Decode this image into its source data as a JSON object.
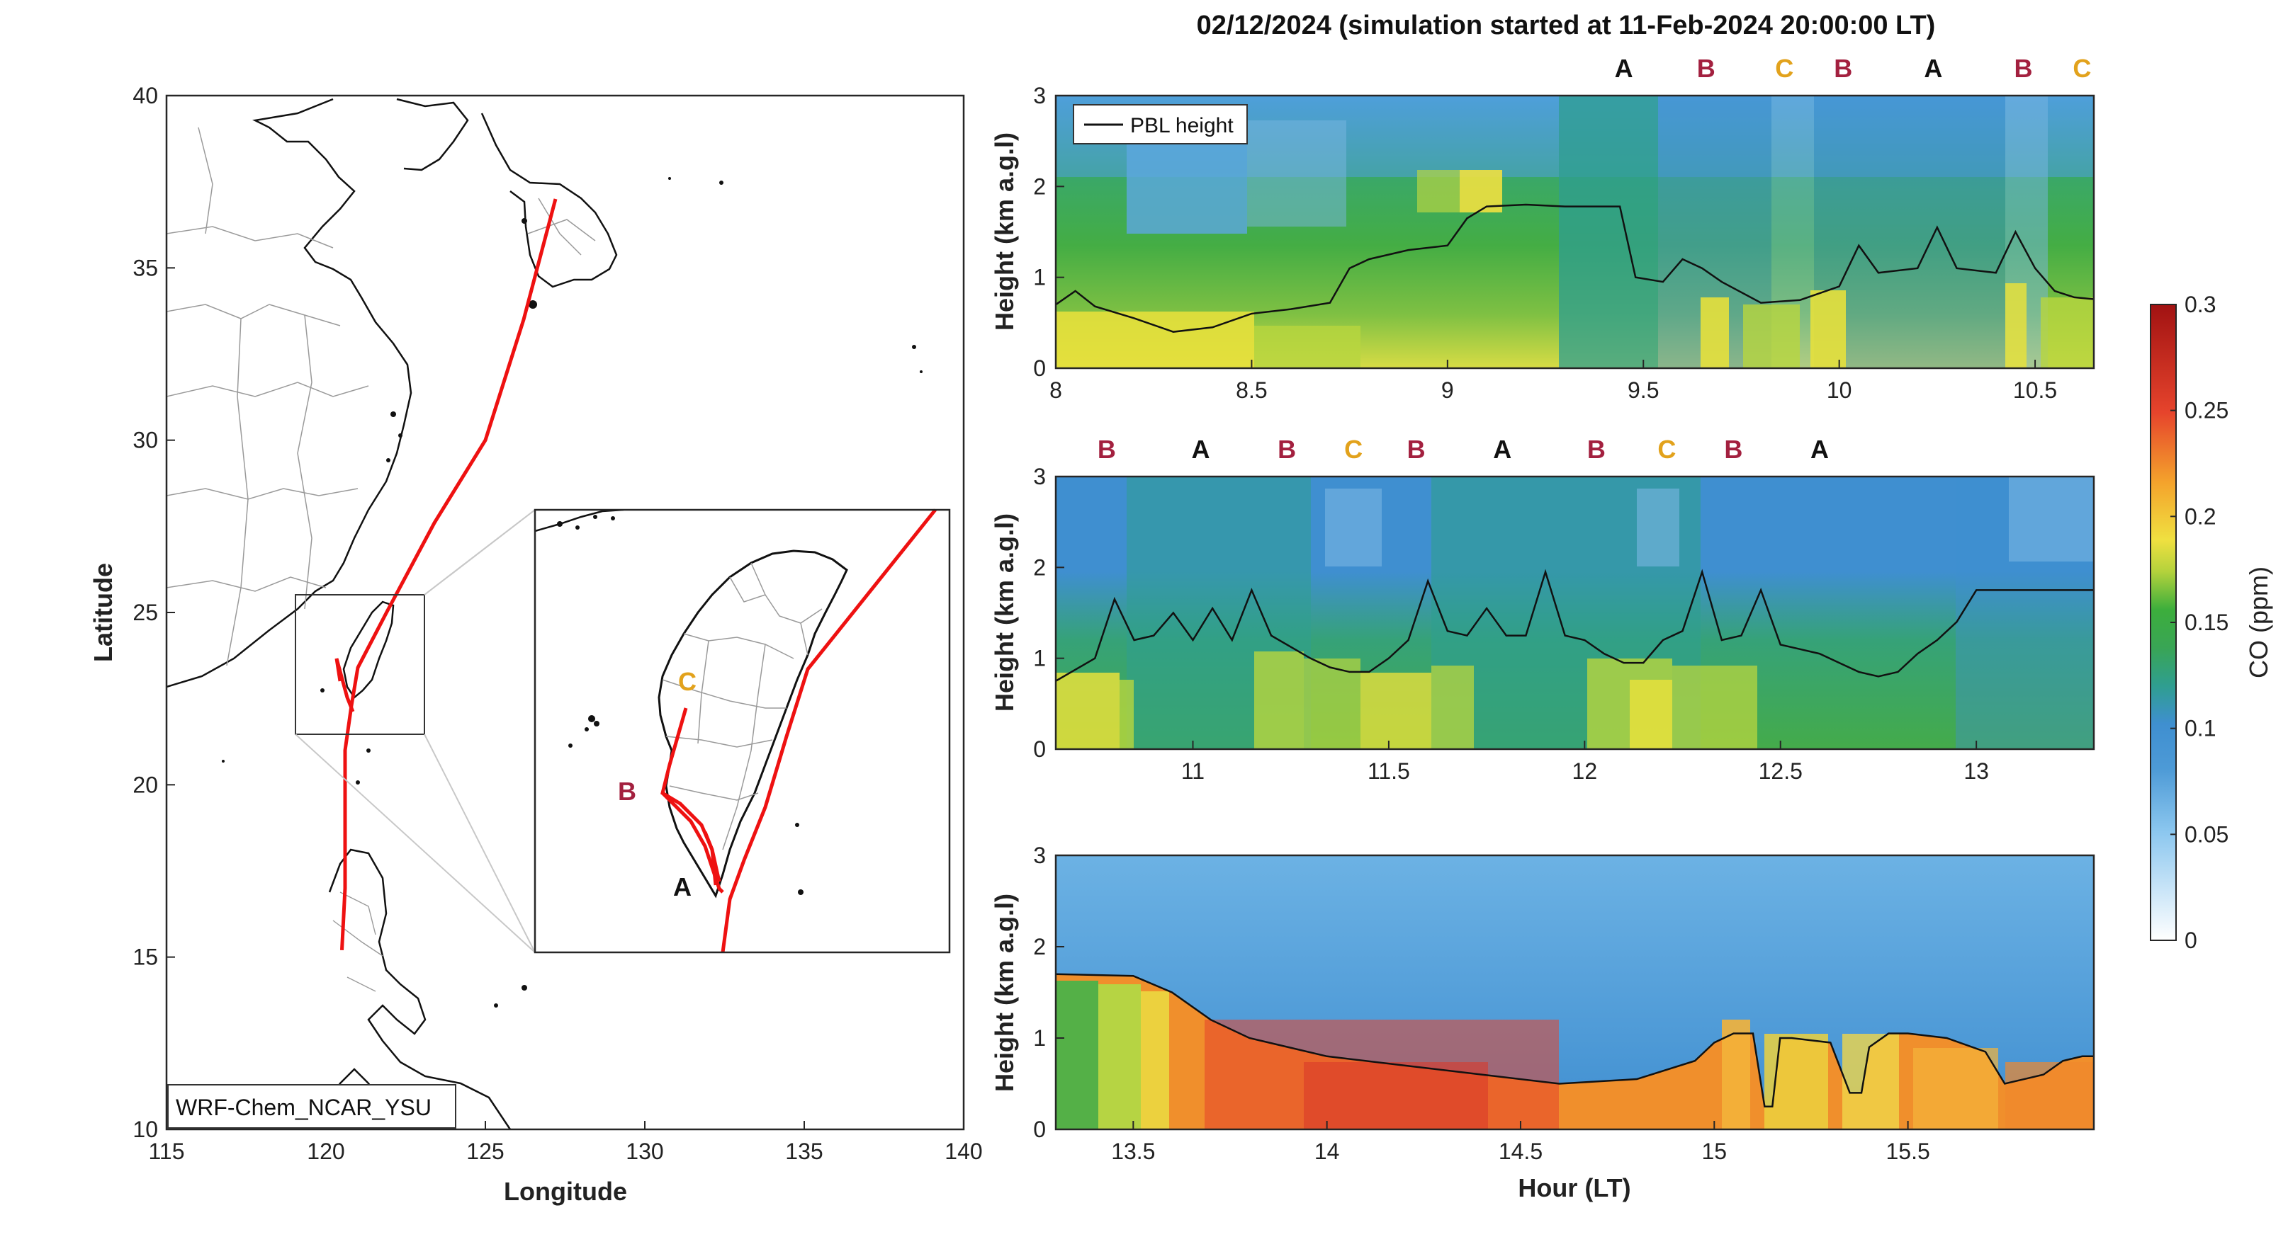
{
  "colors": {
    "track": "#ee1111",
    "mark_A": "#111111",
    "mark_B": "#a3203f",
    "mark_C": "#e2a21c",
    "land_border": "#9a9a9a",
    "coast": "#111111",
    "colormap": [
      "#ffffff",
      "#8cc7ef",
      "#3f8fd0",
      "#2f9e90",
      "#3cae3c",
      "#e6e03c",
      "#f4a32c",
      "#e6442c",
      "#a11212"
    ]
  },
  "chart_data": [
    {
      "type": "map",
      "xlabel": "Longitude",
      "ylabel": "Latitude",
      "xlim": [
        115,
        140
      ],
      "ylim": [
        10,
        40
      ],
      "xticks": [
        "115",
        "120",
        "125",
        "130",
        "135",
        "140"
      ],
      "yticks": [
        "10",
        "15",
        "20",
        "25",
        "30",
        "35",
        "40"
      ],
      "model_label": "WRF-Chem_NCAR_YSU",
      "track": {
        "lon": [
          127.2,
          126.2,
          125.0,
          123.4,
          121.9,
          121.0,
          120.8,
          120.6,
          120.6,
          120.6,
          120.5
        ],
        "lat": [
          37.0,
          33.5,
          30.0,
          27.6,
          25.0,
          23.4,
          22.3,
          21.0,
          19.0,
          17.0,
          15.2
        ]
      },
      "inset_view": {
        "lon": [
          119.2,
          122.9
        ],
        "lat": [
          21.5,
          25.5
        ]
      },
      "inset_marks": [
        {
          "label": "A",
          "color": "mark_A"
        },
        {
          "label": "B",
          "color": "mark_B"
        },
        {
          "label": "C",
          "color": "mark_C"
        }
      ]
    },
    {
      "type": "heatmap",
      "title": "02/12/2024 (simulation started at 11-Feb-2024 20:00:00 LT)",
      "ylabel": "Height (km a.g.l)",
      "xlim": [
        8.0,
        10.65
      ],
      "ylim": [
        0,
        3
      ],
      "xticks": [
        "8",
        "8.5",
        "9",
        "9.5",
        "10",
        "10.5"
      ],
      "yticks": [
        "0",
        "1",
        "2",
        "3"
      ],
      "legend": "PBL height",
      "site_marks": [
        {
          "label": "A",
          "x": 9.45,
          "color": "mark_A"
        },
        {
          "label": "B",
          "x": 9.66,
          "color": "mark_B"
        },
        {
          "label": "C",
          "x": 9.86,
          "color": "mark_C"
        },
        {
          "label": "B",
          "x": 10.01,
          "color": "mark_B"
        },
        {
          "label": "A",
          "x": 10.24,
          "color": "mark_A"
        },
        {
          "label": "B",
          "x": 10.47,
          "color": "mark_B"
        },
        {
          "label": "C",
          "x": 10.62,
          "color": "mark_C"
        }
      ],
      "pbl_height": {
        "x": [
          8.0,
          8.05,
          8.1,
          8.2,
          8.3,
          8.4,
          8.5,
          8.6,
          8.7,
          8.75,
          8.8,
          8.9,
          9.0,
          9.05,
          9.1,
          9.2,
          9.3,
          9.4,
          9.44,
          9.48,
          9.55,
          9.6,
          9.65,
          9.7,
          9.8,
          9.9,
          10.0,
          10.05,
          10.1,
          10.2,
          10.25,
          10.3,
          10.4,
          10.45,
          10.5,
          10.55,
          10.6,
          10.65
        ],
        "y": [
          0.7,
          0.85,
          0.68,
          0.55,
          0.4,
          0.45,
          0.6,
          0.65,
          0.72,
          1.1,
          1.2,
          1.3,
          1.35,
          1.65,
          1.78,
          1.8,
          1.78,
          1.78,
          1.78,
          1.0,
          0.95,
          1.2,
          1.1,
          0.95,
          0.72,
          0.75,
          0.9,
          1.35,
          1.05,
          1.1,
          1.55,
          1.1,
          1.05,
          1.5,
          1.1,
          0.85,
          0.78,
          0.76
        ]
      }
    },
    {
      "type": "heatmap",
      "ylabel": "Height (km a.g.l)",
      "xlim": [
        10.65,
        13.3
      ],
      "ylim": [
        0,
        3
      ],
      "xticks": [
        "11",
        "11.5",
        "12",
        "12.5",
        "13"
      ],
      "yticks": [
        "0",
        "1",
        "2",
        "3"
      ],
      "site_marks": [
        {
          "label": "B",
          "x": 10.78,
          "color": "mark_B"
        },
        {
          "label": "A",
          "x": 11.02,
          "color": "mark_A"
        },
        {
          "label": "B",
          "x": 11.24,
          "color": "mark_B"
        },
        {
          "label": "C",
          "x": 11.41,
          "color": "mark_C"
        },
        {
          "label": "B",
          "x": 11.57,
          "color": "mark_B"
        },
        {
          "label": "A",
          "x": 11.79,
          "color": "mark_A"
        },
        {
          "label": "B",
          "x": 12.03,
          "color": "mark_B"
        },
        {
          "label": "C",
          "x": 12.21,
          "color": "mark_C"
        },
        {
          "label": "B",
          "x": 12.38,
          "color": "mark_B"
        },
        {
          "label": "A",
          "x": 12.6,
          "color": "mark_A"
        }
      ],
      "pbl_height": {
        "x": [
          10.65,
          10.75,
          10.8,
          10.85,
          10.9,
          10.95,
          11.0,
          11.05,
          11.1,
          11.15,
          11.2,
          11.3,
          11.35,
          11.4,
          11.45,
          11.5,
          11.55,
          11.6,
          11.65,
          11.7,
          11.75,
          11.8,
          11.85,
          11.9,
          11.95,
          12.0,
          12.05,
          12.1,
          12.15,
          12.2,
          12.25,
          12.3,
          12.35,
          12.4,
          12.45,
          12.5,
          12.55,
          12.6,
          12.65,
          12.7,
          12.75,
          12.8,
          12.85,
          12.9,
          12.95,
          13.0,
          13.05,
          13.1,
          13.15,
          13.2,
          13.25,
          13.3
        ],
        "y": [
          0.75,
          1.0,
          1.65,
          1.2,
          1.25,
          1.5,
          1.2,
          1.55,
          1.2,
          1.75,
          1.25,
          1.0,
          0.9,
          0.85,
          0.85,
          1.0,
          1.2,
          1.85,
          1.3,
          1.25,
          1.55,
          1.25,
          1.25,
          1.95,
          1.25,
          1.2,
          1.05,
          0.95,
          0.95,
          1.2,
          1.3,
          1.95,
          1.2,
          1.25,
          1.75,
          1.15,
          1.1,
          1.05,
          0.95,
          0.85,
          0.8,
          0.85,
          1.05,
          1.2,
          1.4,
          1.75,
          1.75,
          1.75,
          1.75,
          1.75,
          1.75,
          1.75
        ]
      }
    },
    {
      "type": "heatmap",
      "xlabel": "Hour (LT)",
      "ylabel": "Height (km a.g.l)",
      "xlim": [
        13.3,
        15.98
      ],
      "ylim": [
        0,
        3
      ],
      "xticks": [
        "13.5",
        "14",
        "14.5",
        "15",
        "15.5"
      ],
      "yticks": [
        "0",
        "1",
        "2",
        "3"
      ],
      "pbl_height": {
        "x": [
          13.3,
          13.5,
          13.6,
          13.7,
          13.8,
          13.9,
          14.0,
          14.2,
          14.4,
          14.6,
          14.8,
          14.95,
          15.0,
          15.05,
          15.1,
          15.13,
          15.15,
          15.17,
          15.2,
          15.3,
          15.35,
          15.38,
          15.4,
          15.45,
          15.5,
          15.6,
          15.7,
          15.75,
          15.8,
          15.85,
          15.9,
          15.95,
          15.98
        ],
        "y": [
          1.7,
          1.68,
          1.5,
          1.2,
          1.0,
          0.9,
          0.8,
          0.7,
          0.6,
          0.5,
          0.55,
          0.75,
          0.95,
          1.05,
          1.05,
          0.25,
          0.25,
          1.0,
          1.0,
          0.95,
          0.4,
          0.4,
          0.9,
          1.05,
          1.05,
          1.0,
          0.85,
          0.5,
          0.55,
          0.6,
          0.75,
          0.8,
          0.8
        ]
      }
    },
    {
      "type": "colorbar",
      "label": "CO (ppm)",
      "ticks": [
        "0",
        "0.05",
        "0.1",
        "0.15",
        "0.2",
        "0.25",
        "0.3"
      ],
      "range": [
        0,
        0.3
      ]
    }
  ]
}
